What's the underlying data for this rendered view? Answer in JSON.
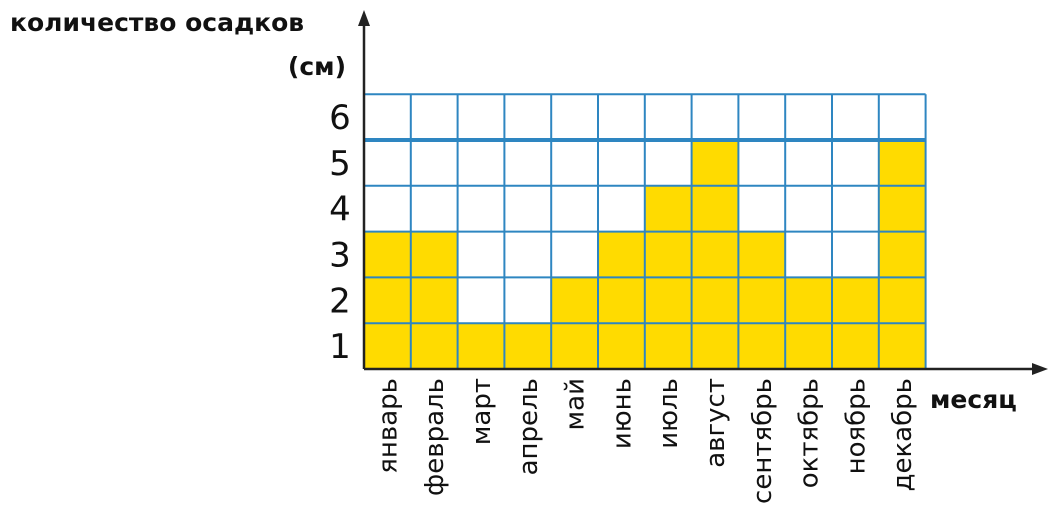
{
  "chart_data": {
    "type": "bar",
    "ylabel_line1": "количество осадков",
    "ylabel_line2": "(см)",
    "xlabel": "месяц",
    "categories": [
      "январь",
      "февраль",
      "март",
      "апрель",
      "май",
      "июнь",
      "июль",
      "август",
      "сентябрь",
      "октябрь",
      "ноябрь",
      "декабрь"
    ],
    "values": [
      3,
      3,
      1,
      1,
      2,
      3,
      4,
      5,
      3,
      2,
      2,
      5
    ],
    "yticks": [
      "1",
      "2",
      "3",
      "4",
      "5",
      "6"
    ],
    "ylim": [
      0,
      6
    ],
    "grid": true,
    "colors": {
      "bar": "#FFDB00",
      "grid": "#2E86C1",
      "axis": "#222222"
    }
  }
}
